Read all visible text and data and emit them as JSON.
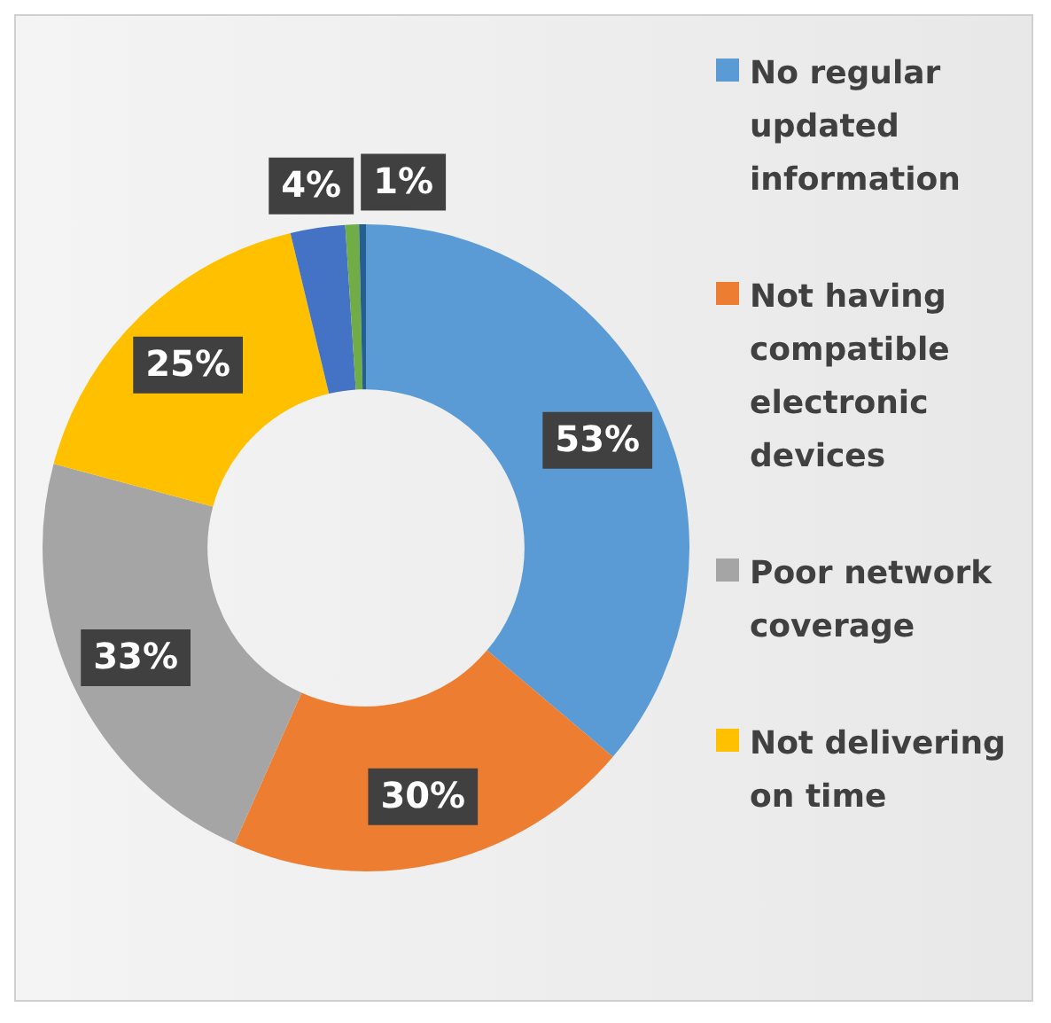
{
  "chart_data": {
    "type": "donut",
    "categories": [
      "No regular updated information",
      "Not having compatible electronic devices",
      "Poor network coverage",
      "Not delivering on time",
      null,
      null,
      null
    ],
    "values": [
      53,
      30,
      33,
      25,
      4,
      1,
      0.5
    ],
    "colors": [
      "#5b9bd5",
      "#ed7d31",
      "#a5a5a5",
      "#ffc000",
      "#4472c4",
      "#70ad47",
      "#255e91"
    ],
    "value_labels": [
      "53%",
      "30%",
      "33%",
      "25%",
      "4%",
      "1%",
      null
    ],
    "legend": "right"
  }
}
